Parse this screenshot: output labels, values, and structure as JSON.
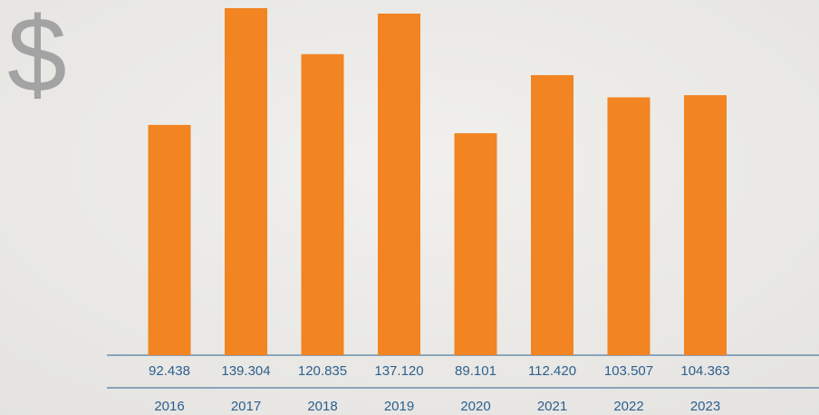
{
  "chart_data": {
    "type": "bar",
    "symbol": "$",
    "categories": [
      "2016",
      "2017",
      "2018",
      "2019",
      "2020",
      "2021",
      "2022",
      "2023"
    ],
    "values": [
      92.438,
      139.304,
      120.835,
      137.12,
      89.101,
      112.42,
      103.507,
      104.363
    ],
    "value_labels": [
      "92.438",
      "139.304",
      "120.835",
      "137.120",
      "89.101",
      "112.420",
      "103.507",
      "104.363"
    ],
    "color": "#f28422"
  }
}
